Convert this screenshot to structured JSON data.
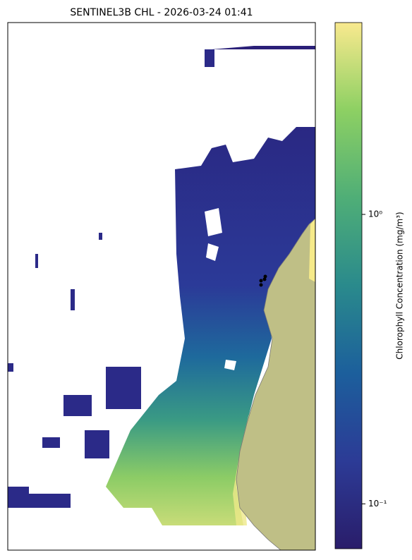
{
  "chart_data": {
    "type": "colorbar-map",
    "title": "SENTINEL3B CHL - 2026-03-24 01:41",
    "colorbar": {
      "label": "Chlorophyll Concentration (mg/m³)",
      "log": true,
      "lim": [
        0.07,
        4.6
      ],
      "ticks": [
        {
          "value": 0.1,
          "label": "10⁻¹"
        },
        {
          "value": 1,
          "label": "10⁰"
        }
      ],
      "colors": [
        "#2a1d6a",
        "#2c3b96",
        "#1c5f9c",
        "#2a8a8c",
        "#4fae77",
        "#8dd063",
        "#f9e98e"
      ]
    },
    "land_color": "#bfbf86"
  }
}
